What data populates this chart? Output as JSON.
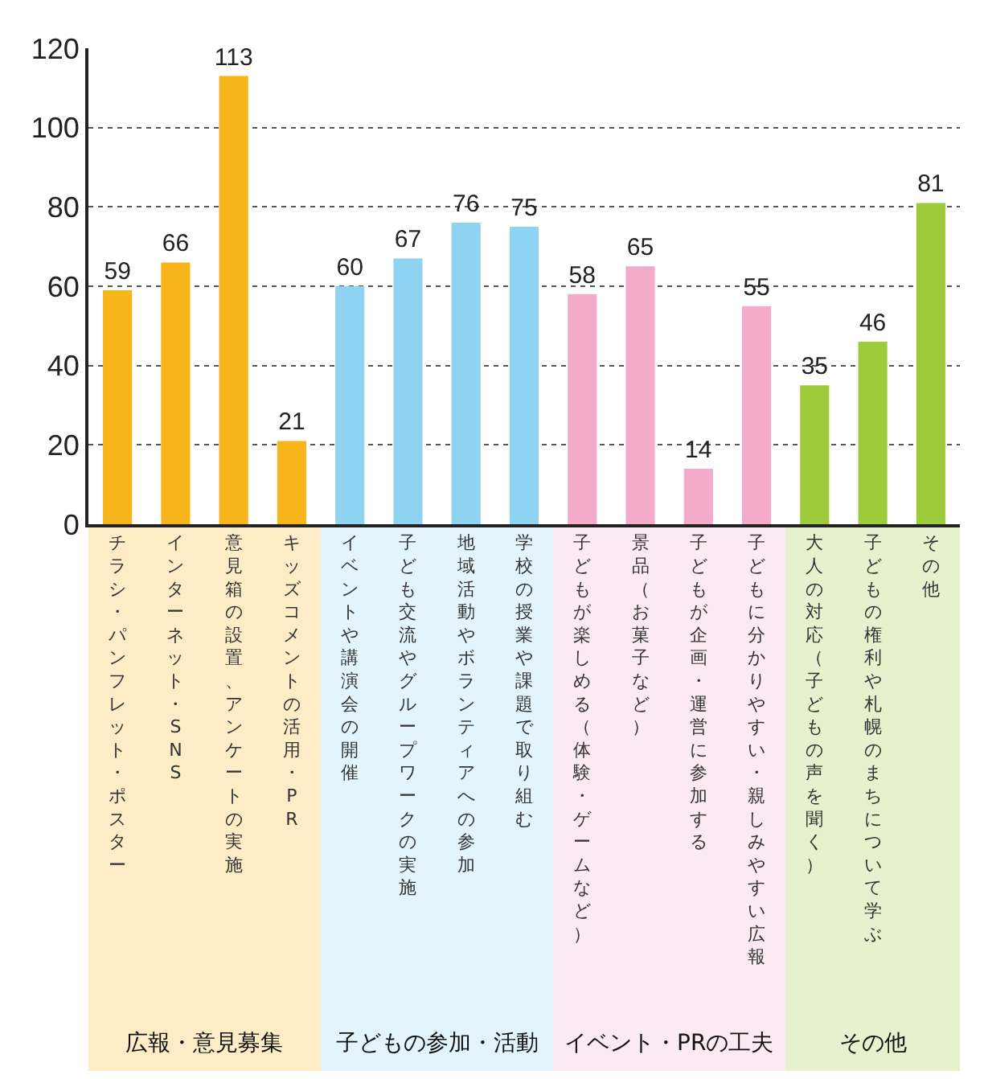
{
  "chart_data": {
    "type": "bar",
    "categories": [
      "チラシ・パンフレット・ポスター",
      "インターネット・SNS",
      "意見箱の設置、アンケートの実施",
      "キッズコメントの活用・PR",
      "イベントや講演会の開催",
      "子ども交流やグループワークの実施",
      "地域活動やボランティアへの参加",
      "学校の授業や課題で取り組む",
      "子どもが楽しめる（体験・ゲームなど）",
      "景品（お菓子など）",
      "子どもが企画・運営に参加する",
      "子どもに分かりやすい・親しみやすい広報",
      "大人の対応（子どもの声を聞く）",
      "子どもの権利や札幌のまちについて学ぶ",
      "その他"
    ],
    "values": [
      59,
      66,
      113,
      21,
      60,
      67,
      76,
      75,
      58,
      65,
      14,
      55,
      35,
      46,
      81
    ],
    "colors": [
      "#f7b41b",
      "#f7b41b",
      "#f7b41b",
      "#f7b41b",
      "#8fd3f2",
      "#8fd3f2",
      "#8fd3f2",
      "#8fd3f2",
      "#f4aacb",
      "#f4aacb",
      "#f4aacb",
      "#f4aacb",
      "#9dcb3a",
      "#9dcb3a",
      "#9dcb3a"
    ],
    "ylim": [
      0,
      120
    ],
    "yticks": [
      0,
      20,
      40,
      60,
      80,
      100,
      120
    ],
    "grid": "y",
    "data_labels": true,
    "annotations": [
      "広報・意見募集",
      "子どもの参加・活動",
      "イベント・PRの工夫",
      "その他"
    ]
  }
}
